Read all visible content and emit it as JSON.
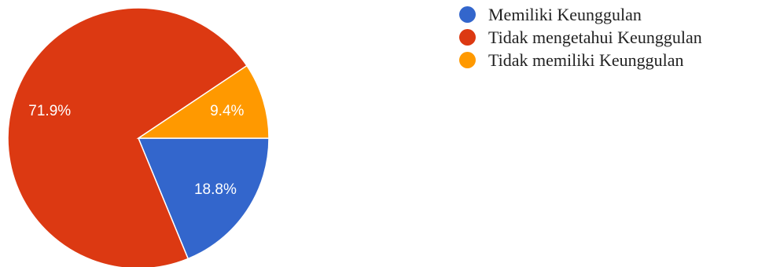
{
  "chart_data": {
    "type": "pie",
    "title": "",
    "categories": [
      "Memiliki Keunggulan",
      "Tidak mengetahui Keunggulan",
      "Tidak memiliki Keunggulan"
    ],
    "values": [
      18.8,
      71.9,
      9.4
    ],
    "value_labels": [
      "18.8%",
      "71.9%",
      "9.4%"
    ],
    "colors": [
      "#3366CC",
      "#DC3912",
      "#FF9900"
    ],
    "start": "3 o'clock",
    "direction": "clockwise",
    "legend_position": "right"
  }
}
